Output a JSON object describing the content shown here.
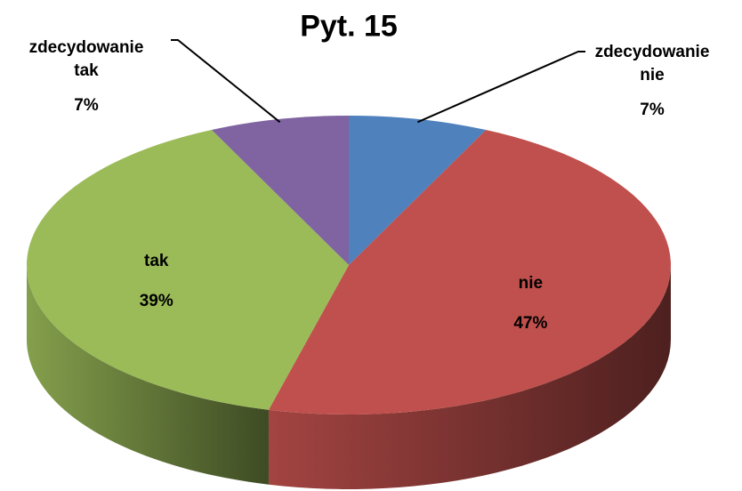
{
  "chart_data": {
    "type": "pie",
    "title": "Pyt. 15",
    "categories": [
      "zdecydowanie nie",
      "nie",
      "tak",
      "zdecydowanie tak"
    ],
    "values": [
      7,
      47,
      39,
      7
    ],
    "value_labels": [
      "7%",
      "47%",
      "39%",
      "7%"
    ],
    "colors": [
      "#4f81bd",
      "#c0504d",
      "#9bbb59",
      "#8064a2"
    ],
    "three_d": true
  }
}
